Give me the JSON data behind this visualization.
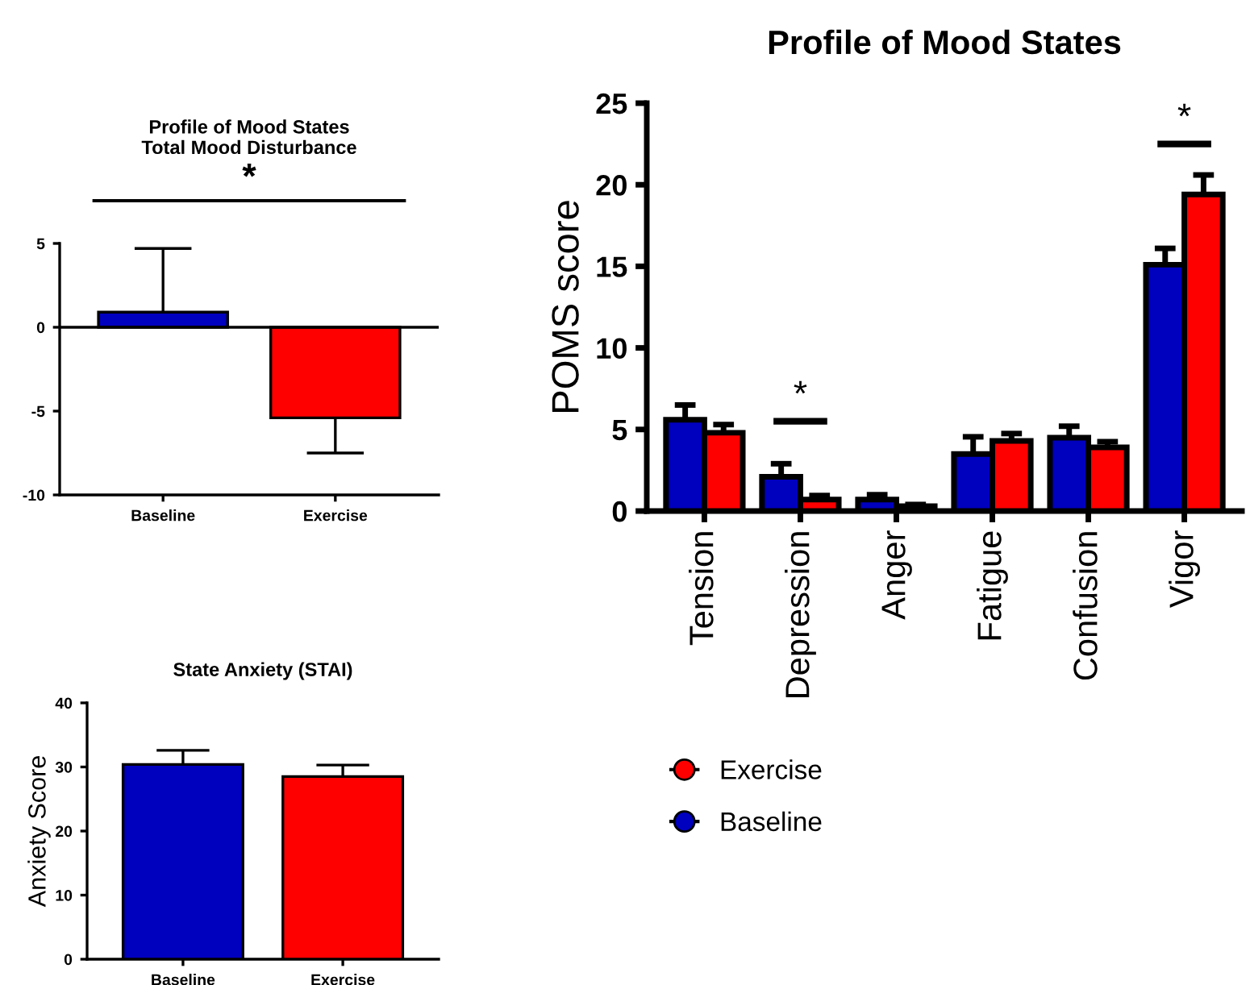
{
  "chart_data": [
    {
      "type": "bar",
      "title": "Profile of Mood States\nTotal Mood Disturbance",
      "categories": [
        "Baseline",
        "Exercise"
      ],
      "values": [
        0.9,
        -5.4
      ],
      "errors": [
        [
          0.9,
          4.7
        ],
        [
          -7.5,
          -5.4
        ]
      ],
      "colors": [
        "#0000bf",
        "#ff0000"
      ],
      "ylim": [
        -10,
        5
      ],
      "yticks": [
        -10,
        -5,
        0,
        5
      ],
      "annotations": [
        "*"
      ],
      "ref_lines": [
        {
          "axis": "y",
          "value": 0,
          "color": "#000000"
        }
      ],
      "grid": false,
      "legend": false
    },
    {
      "type": "bar",
      "title": "State Anxiety (STAI)",
      "ylabel": "Anxiety Score",
      "categories": [
        "Baseline",
        "Exercise"
      ],
      "values": [
        30.4,
        28.5
      ],
      "errors": [
        [
          30.4,
          32.6
        ],
        [
          28.5,
          30.3
        ]
      ],
      "colors": [
        "#0000bf",
        "#ff0000"
      ],
      "ylim": [
        0,
        40
      ],
      "yticks": [
        0,
        10,
        20,
        30,
        40
      ],
      "grid": false,
      "legend": false
    },
    {
      "type": "bar",
      "title": "Profile of Mood States",
      "ylabel": "POMS score",
      "categories": [
        "Tension",
        "Depression",
        "Anger",
        "Fatigue",
        "Confusion",
        "Vigor"
      ],
      "series": [
        {
          "name": "Baseline",
          "color": "#0000bf",
          "values": [
            5.6,
            2.1,
            0.7,
            3.5,
            4.5,
            15.1
          ],
          "errors": [
            [
              5.6,
              6.5
            ],
            [
              2.1,
              2.9
            ],
            [
              0.7,
              1.0
            ],
            [
              3.5,
              4.55
            ],
            [
              4.5,
              5.2
            ],
            [
              15.1,
              16.1
            ]
          ]
        },
        {
          "name": "Exercise",
          "color": "#ff0000",
          "values": [
            4.8,
            0.7,
            0.3,
            4.3,
            3.9,
            19.4
          ],
          "errors": [
            [
              4.8,
              5.3
            ],
            [
              0.7,
              0.95
            ],
            [
              0.3,
              0.4
            ],
            [
              4.3,
              4.75
            ],
            [
              3.9,
              4.25
            ],
            [
              19.4,
              20.6
            ]
          ]
        }
      ],
      "ylim": [
        0,
        25
      ],
      "yticks": [
        0,
        5,
        10,
        15,
        20,
        25
      ],
      "annotations": [
        "*",
        "*"
      ],
      "grid": false,
      "legend": "bottom"
    }
  ]
}
